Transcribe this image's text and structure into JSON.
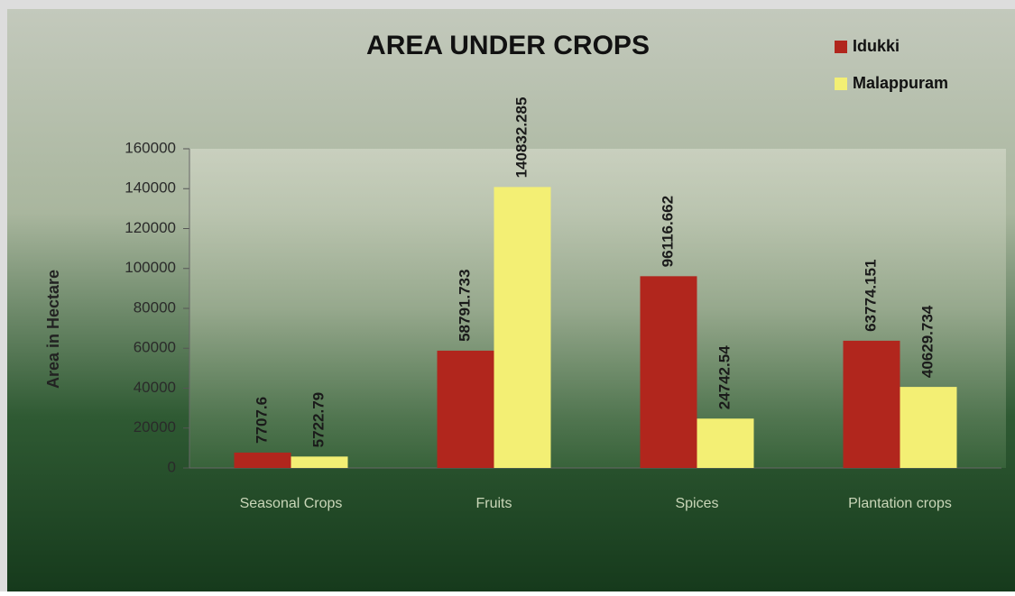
{
  "chart_data": {
    "type": "bar",
    "title": "AREA  UNDER CROPS",
    "y_label": "Area in Hectare",
    "categories": [
      "Seasonal Crops",
      "Fruits",
      "Spices",
      "Plantation crops"
    ],
    "series": [
      {
        "name": "Idukki",
        "color": "#b1261d",
        "values": [
          7707.6,
          58791.733,
          96116.662,
          63774.151
        ]
      },
      {
        "name": "Malappuram",
        "color": "#f3ef74",
        "values": [
          5722.79,
          140832.285,
          24742.54,
          40629.734
        ]
      }
    ],
    "ylim": [
      0,
      160000
    ],
    "yticks": [
      0,
      20000,
      40000,
      60000,
      80000,
      100000,
      120000,
      140000,
      160000
    ],
    "legend": "top-right",
    "data_labels": true
  }
}
